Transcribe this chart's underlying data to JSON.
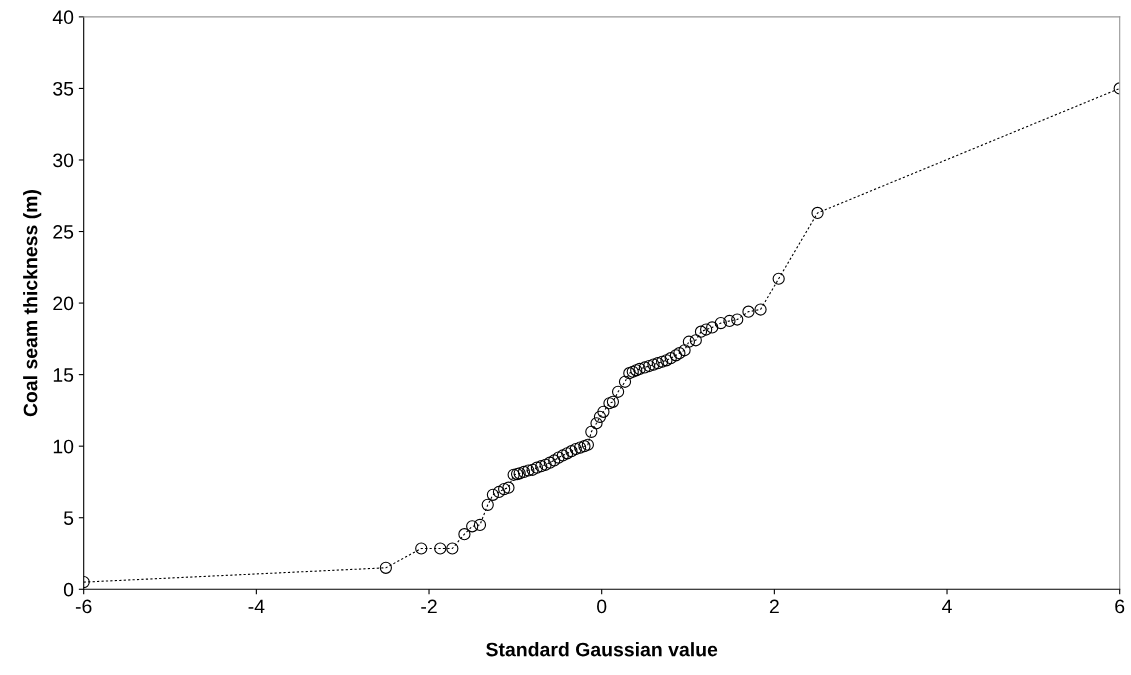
{
  "chart_data": {
    "type": "line",
    "xlabel": "Standard Gaussian value",
    "ylabel": "Coal seam thickness (m)",
    "xlim": [
      -6,
      6
    ],
    "xticks": [
      -6,
      -4,
      -2,
      0,
      2,
      4,
      6
    ],
    "ylim": [
      0,
      40
    ],
    "yticks": [
      0,
      5,
      10,
      15,
      20,
      25,
      30,
      35,
      40
    ],
    "grid": false,
    "legend": false,
    "marker": "circle",
    "line_style": "dotted",
    "series": [
      {
        "color": "#000000",
        "x": [
          -6,
          -2.5,
          -2.09,
          -1.87,
          -1.73,
          -1.59,
          -1.5,
          -1.41,
          -1.32,
          -1.26,
          -1.19,
          -1.13,
          -1.08,
          -1.02,
          -0.98,
          -0.95,
          -0.9,
          -0.85,
          -0.8,
          -0.75,
          -0.7,
          -0.65,
          -0.6,
          -0.55,
          -0.5,
          -0.45,
          -0.4,
          -0.35,
          -0.3,
          -0.25,
          -0.2,
          -0.16,
          -0.12,
          -0.06,
          -0.02,
          0.02,
          0.09,
          0.13,
          0.19,
          0.27,
          0.32,
          0.36,
          0.4,
          0.44,
          0.5,
          0.55,
          0.6,
          0.65,
          0.7,
          0.75,
          0.8,
          0.86,
          0.9,
          0.96,
          1.01,
          1.09,
          1.15,
          1.21,
          1.28,
          1.38,
          1.48,
          1.57,
          1.7,
          1.84,
          2.05,
          2.5,
          6
        ],
        "values": [
          0.5,
          1.5,
          2.85,
          2.85,
          2.85,
          3.85,
          4.4,
          4.5,
          5.9,
          6.6,
          6.8,
          7.0,
          7.1,
          8.0,
          8.05,
          8.1,
          8.2,
          8.3,
          8.35,
          8.5,
          8.6,
          8.7,
          8.85,
          9.0,
          9.2,
          9.35,
          9.5,
          9.65,
          9.8,
          9.9,
          10.0,
          10.1,
          11.0,
          11.6,
          12.05,
          12.4,
          13.0,
          13.1,
          13.8,
          14.5,
          15.1,
          15.2,
          15.3,
          15.4,
          15.5,
          15.6,
          15.7,
          15.8,
          15.9,
          16.0,
          16.15,
          16.35,
          16.5,
          16.7,
          17.3,
          17.4,
          18.0,
          18.15,
          18.3,
          18.6,
          18.75,
          18.85,
          19.4,
          19.55,
          21.7,
          26.3,
          35.0
        ]
      }
    ]
  }
}
